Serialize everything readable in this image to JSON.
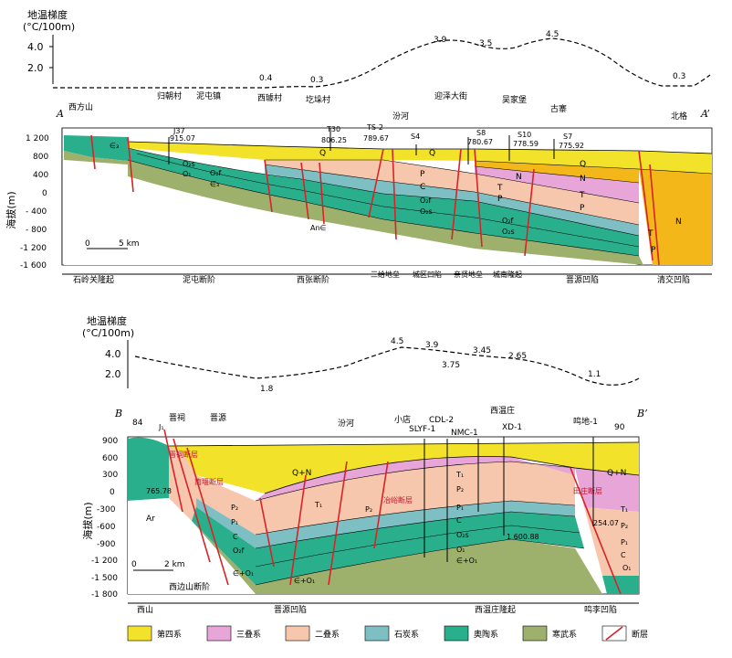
{
  "colors": {
    "quaternary": "#f2e22a",
    "triassic": "#e7a5d8",
    "permian": "#f6c7ad",
    "carboniferous": "#7dbfc3",
    "ordovician": "#2aaf8c",
    "cambrian": "#9db06c",
    "fault": "#d8232a",
    "neogene": "#f3b71a",
    "basement": "#d9d9d9"
  },
  "sectionA": {
    "gradient_label": "地温梯度",
    "gradient_unit": "(°C/100m)",
    "gradient_ticks": [
      "4.0",
      "2.0"
    ],
    "gradient_values": [
      "0.4",
      "0.3",
      "3.9",
      "3.5",
      "4.5",
      "0.3"
    ],
    "label_left": "A",
    "label_right": "A’",
    "y_axis_title": "海拔(m)",
    "y_ticks": [
      "1 200",
      "800",
      "400",
      "0",
      "- 400",
      "- 800",
      "-1 200",
      "-1 600"
    ],
    "scale": [
      "0",
      "5 km"
    ],
    "places": [
      "西方山",
      "归朝村",
      "泥屯镇",
      "西璩村",
      "圪垛村",
      "汾河",
      "迎泽大街",
      "吴家堡",
      "古寨",
      "北格"
    ],
    "wells": [
      "J37",
      "915.07",
      "T30",
      "806.25",
      "TS-2",
      "789.67",
      "S4",
      "S8",
      "780.67",
      "S10",
      "778.59",
      "S7",
      "775.92"
    ],
    "units": [
      "Q",
      "N",
      "T",
      "P",
      "C",
      "O₂f",
      "O₂s",
      "O₁",
      "∈₃",
      "An∈"
    ],
    "regions": [
      "石岭关隆起",
      "泥屯断阶",
      "西张断阶",
      "三给地垒",
      "城区凹陷",
      "亲贤地垒",
      "城南隆起",
      "晋源凹陷",
      "清交凹陷"
    ]
  },
  "sectionB": {
    "gradient_label": "地温梯度",
    "gradient_unit": "(°C/100m)",
    "gradient_ticks": [
      "4.0",
      "2.0"
    ],
    "gradient_values": [
      "1.8",
      "4.5",
      "3.9",
      "3.75",
      "3.45",
      "2.65",
      "1.1"
    ],
    "label_left": "B",
    "label_right": "B’",
    "y_axis_title": "海拔(m)",
    "y_ticks": [
      "900",
      "600",
      "300",
      "0",
      "-300",
      "-600",
      "-900",
      "-1 200",
      "-1 500",
      "-1 800"
    ],
    "scale": [
      "0",
      "2 km"
    ],
    "places": [
      "晋祠",
      "晋源",
      "汾河",
      "小店",
      "SLYF-1",
      "CDL-2",
      "NMC-1",
      "西温庄",
      "XD-1",
      "鸣地-1"
    ],
    "numbers": [
      "84",
      "90",
      "J₁",
      "765.78",
      "1 600.88",
      "254.07"
    ],
    "units": [
      "Q+N",
      "Ar",
      "T₁",
      "P₂",
      "P₁",
      "C",
      "O₂f",
      "O₂s",
      "O₁",
      "∈+O₁"
    ],
    "faults": [
      "西边山断阶",
      "南堰断层",
      "冶峪断层",
      "田庄断层",
      "晋祠断层"
    ],
    "regions": [
      "西山",
      "晋源凹陷",
      "西温庄隆起",
      "鸣李凹陷"
    ]
  },
  "legend": [
    "第四系",
    "三叠系",
    "二叠系",
    "石炭系",
    "奥陶系",
    "寒武系",
    "断层"
  ]
}
